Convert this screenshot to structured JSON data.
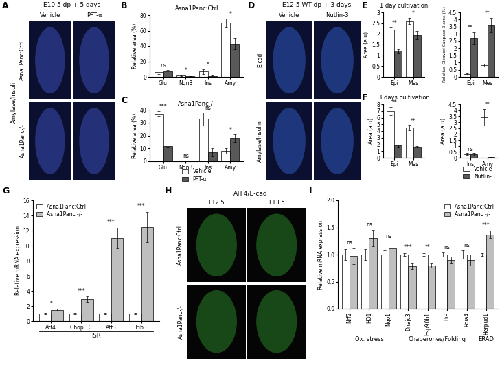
{
  "images": [
    {
      "panel": "A",
      "title": "E10.5 dp + 5 days",
      "columns": [
        "Vehicle",
        "PFT-α"
      ],
      "rows": [
        "Asna1Panc:Ctrl",
        "Asna1Panc-/-"
      ],
      "stain": "Amylase/Insulin"
    },
    {
      "panel": "D",
      "title": "E12.5 WT dp + 3 days",
      "columns": [
        "Vehicle",
        "Nutlin-3"
      ],
      "rows": [
        "E-cad",
        "Amylase/Insulin"
      ]
    },
    {
      "panel": "H",
      "title": "ATF4/E-cad",
      "columns": [
        "E12.5",
        "E13.5"
      ],
      "rows": [
        "Asna1Panc:Ctrl",
        "Asna1Panc-/-"
      ]
    }
  ],
  "chart_data": [
    {
      "panel": "B",
      "type": "bar",
      "title": "Asna1Panc:Ctrl",
      "ylabel": "Relative area (%)",
      "categories": [
        "Glu",
        "Ngn3",
        "Ins",
        "Amy"
      ],
      "series": [
        {
          "color": "#ffffff",
          "values": [
            6,
            2,
            7,
            70
          ],
          "errors": [
            2,
            0.8,
            3,
            6
          ]
        },
        {
          "color": "#595959",
          "values": [
            7,
            0.6,
            1,
            43
          ],
          "errors": [
            2,
            0.3,
            0.6,
            7
          ]
        }
      ],
      "annotations": [
        "ns",
        "*",
        "*",
        "*"
      ],
      "ylim": [
        0,
        80
      ],
      "yticks": [
        0,
        20,
        40,
        60,
        80
      ]
    },
    {
      "panel": "C",
      "type": "bar",
      "title": "Asna1Panc-/-",
      "ylabel": "Relative area (%)",
      "categories": [
        "Glu",
        "Ngn3",
        "Ins",
        "Amy"
      ],
      "series": [
        {
          "name": "Vehicle",
          "color": "#ffffff",
          "values": [
            37,
            0.5,
            33,
            8
          ],
          "errors": [
            2,
            0.3,
            5,
            2
          ]
        },
        {
          "name": "PFT-α",
          "color": "#595959",
          "values": [
            12,
            0.3,
            7,
            18
          ],
          "errors": [
            1,
            0.2,
            3,
            3
          ]
        }
      ],
      "annotations": [
        "***",
        "ns",
        "ns",
        "*"
      ],
      "ylim": [
        0,
        40
      ],
      "yticks": [
        0,
        10,
        20,
        30,
        40
      ],
      "legend": "lower center"
    },
    {
      "panel": "E",
      "type": "bar",
      "title": "1 day cultivation",
      "ylabel": "Area (a.u)",
      "categories": [
        "Epi",
        "Mes"
      ],
      "series": [
        {
          "color": "#ffffff",
          "values": [
            2.2,
            2.6
          ],
          "errors": [
            0.1,
            0.15
          ]
        },
        {
          "color": "#595959",
          "values": [
            1.2,
            1.95
          ],
          "errors": [
            0.08,
            0.2
          ]
        }
      ],
      "annotations": [
        "**",
        "*"
      ],
      "ylim": [
        0,
        3
      ],
      "yticks": [
        0,
        0.5,
        1,
        1.5,
        2,
        2.5,
        3
      ]
    },
    {
      "type": "bar",
      "ylabel": "Relative Cleaved Caspase 3 area (%)",
      "categories": [
        "Epi",
        "Mes"
      ],
      "series": [
        {
          "color": "#ffffff",
          "values": [
            0.2,
            0.8
          ],
          "errors": [
            0.05,
            0.1
          ]
        },
        {
          "color": "#595959",
          "values": [
            2.7,
            3.6
          ],
          "errors": [
            0.4,
            0.5
          ]
        }
      ],
      "annotations": [
        "**",
        "**"
      ],
      "ylim": [
        0,
        4.5
      ],
      "yticks": [
        0,
        0.5,
        1,
        1.5,
        2,
        2.5,
        3,
        3.5,
        4,
        4.5
      ]
    },
    {
      "panel": "F",
      "type": "bar",
      "title": "3 days cultivation",
      "ylabel": "Area (a.u)",
      "categories": [
        "Epi",
        "Mes"
      ],
      "series": [
        {
          "color": "#ffffff",
          "values": [
            7,
            4.5
          ],
          "errors": [
            0.6,
            0.4
          ]
        },
        {
          "color": "#595959",
          "values": [
            1.8,
            1.6
          ],
          "errors": [
            0.2,
            0.1
          ]
        }
      ],
      "annotations": [
        "**",
        "**"
      ],
      "ylim": [
        0,
        8
      ],
      "yticks": [
        0,
        1,
        2,
        3,
        4,
        5,
        6,
        7,
        8
      ]
    },
    {
      "type": "bar",
      "ylabel": "Area (a.u)",
      "categories": [
        "Ins",
        "Amy"
      ],
      "series": [
        {
          "name": "Vehicle",
          "color": "#ffffff",
          "values": [
            0.3,
            3.4
          ],
          "errors": [
            0.08,
            0.7
          ]
        },
        {
          "name": "Nutlin-3",
          "color": "#595959",
          "values": [
            0.3,
            0.03
          ],
          "errors": [
            0.1,
            0.02
          ]
        }
      ],
      "annotations": [
        "ns",
        "**"
      ],
      "ylim": [
        0,
        4.5
      ],
      "yticks": [
        0,
        0.5,
        1,
        1.5,
        2,
        2.5,
        3,
        3.5,
        4,
        4.5
      ],
      "legend": "lower center"
    },
    {
      "panel": "G",
      "type": "bar",
      "ylabel": "Relative mRNA expression",
      "categories": [
        "Atf4",
        "Chop 10",
        "Atf3",
        "Trib3"
      ],
      "series": [
        {
          "name": "Asna1Panc:Ctrl",
          "color": "#ffffff",
          "values": [
            1,
            1,
            1,
            1
          ],
          "errors": [
            0.08,
            0.1,
            0.1,
            0.12
          ]
        },
        {
          "name": "Asna1Panc -/-",
          "color": "#bfbfbf",
          "values": [
            1.5,
            2.9,
            11,
            12.5
          ],
          "errors": [
            0.1,
            0.35,
            1.4,
            2
          ]
        }
      ],
      "annotations": [
        "*",
        "***",
        "***",
        "***"
      ],
      "ylim": [
        0,
        16
      ],
      "yticks": [
        0,
        2,
        4,
        6,
        8,
        10,
        12,
        14,
        16
      ],
      "groups": [
        {
          "label": "ISR",
          "categories": [
            "Atf4",
            "Chop 10",
            "Atf3",
            "Trib3"
          ]
        }
      ],
      "legend": "upper left"
    },
    {
      "panel": "I",
      "type": "bar",
      "ylabel": "Relative mRNA expression",
      "categories": [
        "Nrf2",
        "HO1",
        "Nqo1",
        "Dnajc3",
        "Hsp90b1",
        "BiP",
        "Pdia4",
        "Herpud1"
      ],
      "series": [
        {
          "name": "Asna1Panc:Ctrl",
          "color": "#ffffff",
          "values": [
            1,
            1,
            1,
            1,
            1,
            1,
            1,
            1
          ],
          "errors": [
            0.1,
            0.1,
            0.08,
            0.03,
            0.03,
            0.04,
            0.08,
            0.03
          ]
        },
        {
          "name": "Asna1Panc -/-",
          "color": "#bfbfbf",
          "values": [
            0.97,
            1.3,
            1.12,
            0.78,
            0.8,
            0.9,
            0.9,
            1.37
          ],
          "errors": [
            0.15,
            0.15,
            0.12,
            0.05,
            0.04,
            0.06,
            0.1,
            0.07
          ]
        }
      ],
      "annotations": [
        "ns",
        "ns",
        "ns",
        "***",
        "**",
        "ns",
        "ns",
        "***"
      ],
      "ylim": [
        0,
        2
      ],
      "yticks": [
        {
          "value": 0,
          "label": "0,0"
        },
        {
          "value": 0.5,
          "label": "0,5"
        },
        {
          "value": 1,
          "label": "1,0"
        },
        {
          "value": 1.5,
          "label": "1,5"
        },
        {
          "value": 2,
          "label": "2,0"
        }
      ],
      "groups": [
        {
          "label": "Ox. stress",
          "categories": [
            "Nrf2",
            "HO1",
            "Nqo1"
          ]
        },
        {
          "label": "Chaperones/Folding",
          "categories": [
            "Dnajc3",
            "Hsp90b1",
            "BiP",
            "Pdia4"
          ]
        },
        {
          "label": "ERAD",
          "categories": [
            "Herpud1"
          ]
        }
      ],
      "legend": "upper right"
    }
  ]
}
